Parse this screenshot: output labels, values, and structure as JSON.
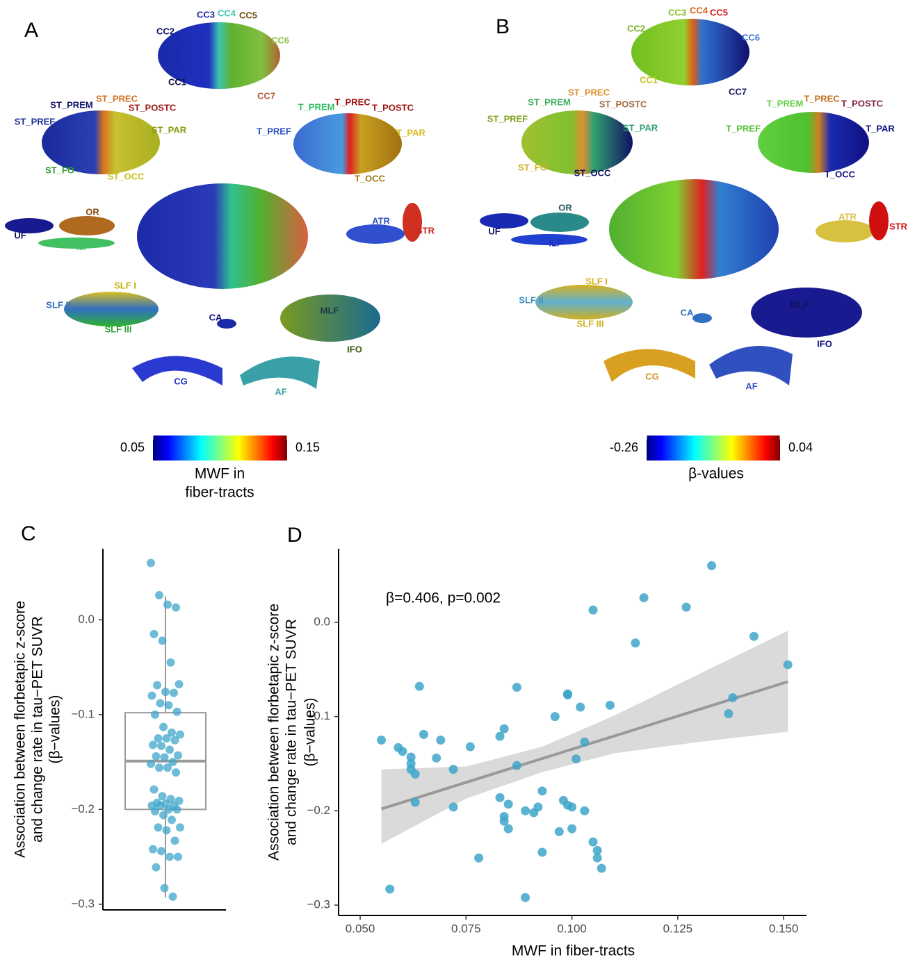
{
  "tract_maps": [
    {
      "letter": "A",
      "labels": [
        {
          "text": "CC3",
          "color": "#1f1fa0"
        },
        {
          "text": "CC4",
          "color": "#3cc7b0"
        },
        {
          "text": "CC5",
          "color": "#6e4e10"
        },
        {
          "text": "CC2",
          "color": "#10106a"
        },
        {
          "text": "CC6",
          "color": "#8cc040"
        },
        {
          "text": "CC1",
          "color": "#101040"
        },
        {
          "text": "CC7",
          "color": "#b05a30"
        },
        {
          "text": "ST_PREM",
          "color": "#10106a"
        },
        {
          "text": "ST_PREC",
          "color": "#d07020"
        },
        {
          "text": "ST_POSTC",
          "color": "#a01818"
        },
        {
          "text": "ST_PREF",
          "color": "#1a2a9a"
        },
        {
          "text": "ST_PAR",
          "color": "#8a9a10"
        },
        {
          "text": "ST_FO",
          "color": "#30a030"
        },
        {
          "text": "ST_OCC",
          "color": "#c8c020"
        },
        {
          "text": "T_PREM",
          "color": "#30c060"
        },
        {
          "text": "T_PREC",
          "color": "#a01010"
        },
        {
          "text": "T_POSTC",
          "color": "#a01010"
        },
        {
          "text": "T_PREF",
          "color": "#3050c0"
        },
        {
          "text": "T_PAR",
          "color": "#d8c020"
        },
        {
          "text": "T_OCC",
          "color": "#a07810"
        },
        {
          "text": "OR",
          "color": "#8a4a10"
        },
        {
          "text": "UF",
          "color": "#101060"
        },
        {
          "text": "ILF",
          "color": "#40c060"
        },
        {
          "text": "ATR",
          "color": "#3050c0"
        },
        {
          "text": "STR",
          "color": "#d02020"
        },
        {
          "text": "SLF I",
          "color": "#c8b010"
        },
        {
          "text": "SLF II",
          "color": "#3070c0"
        },
        {
          "text": "SLF III",
          "color": "#30a030"
        },
        {
          "text": "CA",
          "color": "#101080"
        },
        {
          "text": "MLF",
          "color": "#1a3a4a"
        },
        {
          "text": "IFO",
          "color": "#3a5a10"
        },
        {
          "text": "CG",
          "color": "#2030c0"
        },
        {
          "text": "AF",
          "color": "#30a0a8"
        }
      ],
      "colorbar": {
        "ticks": [
          0.05,
          0.15
        ],
        "label": [
          "MWF in",
          "fiber-tracts"
        ]
      }
    },
    {
      "letter": "B",
      "labels": [
        {
          "text": "CC3",
          "color": "#80c020"
        },
        {
          "text": "CC4",
          "color": "#e06010"
        },
        {
          "text": "CC5",
          "color": "#d01010"
        },
        {
          "text": "CC2",
          "color": "#70b020"
        },
        {
          "text": "CC6",
          "color": "#3070d0"
        },
        {
          "text": "CC1",
          "color": "#c8c020"
        },
        {
          "text": "CC7",
          "color": "#101060"
        },
        {
          "text": "ST_PREC",
          "color": "#e09030"
        },
        {
          "text": "ST_PREM",
          "color": "#40b060"
        },
        {
          "text": "ST_POSTC",
          "color": "#a07040"
        },
        {
          "text": "ST_PREF",
          "color": "#80a020"
        },
        {
          "text": "ST_PAR",
          "color": "#30a070"
        },
        {
          "text": "ST_FO",
          "color": "#d0b020"
        },
        {
          "text": "ST_OCC",
          "color": "#101060"
        },
        {
          "text": "T_PREM",
          "color": "#60d040"
        },
        {
          "text": "T_PREC",
          "color": "#c07020"
        },
        {
          "text": "T_POSTC",
          "color": "#802040"
        },
        {
          "text": "T_PREF",
          "color": "#50c030"
        },
        {
          "text": "T_PAR",
          "color": "#101080"
        },
        {
          "text": "T_OCC",
          "color": "#101080"
        },
        {
          "text": "OR",
          "color": "#2a5a5a"
        },
        {
          "text": "UF",
          "color": "#101060"
        },
        {
          "text": "ILF",
          "color": "#2030c0"
        },
        {
          "text": "ATR",
          "color": "#d8c040"
        },
        {
          "text": "STR",
          "color": "#d01010"
        },
        {
          "text": "SLF I",
          "color": "#d8b020"
        },
        {
          "text": "SLF II",
          "color": "#4090c0"
        },
        {
          "text": "SLF III",
          "color": "#d0b020"
        },
        {
          "text": "CA",
          "color": "#3070c0"
        },
        {
          "text": "MLF",
          "color": "#101060"
        },
        {
          "text": "IFO",
          "color": "#101080"
        },
        {
          "text": "CG",
          "color": "#d09020"
        },
        {
          "text": "AF",
          "color": "#3050c0"
        }
      ],
      "colorbar": {
        "ticks": [
          -0.26,
          0.04
        ],
        "label": [
          "β-values"
        ]
      }
    }
  ],
  "chart_data": [
    {
      "type": "box",
      "letter": "C",
      "ylabel": [
        "Association between florbetapic z-score",
        "and change rate in tau−PET SUVR",
        "(β−values)"
      ],
      "ylim": [
        -0.306,
        0.075
      ],
      "yticks": [
        {
          "value": -0.3,
          "label": "−0.3"
        },
        {
          "value": -0.2,
          "label": "−0.2"
        },
        {
          "value": -0.1,
          "label": "−0.1"
        },
        {
          "value": 0,
          "label": "0.0"
        }
      ],
      "box": {
        "whisker_low": -0.293,
        "q1": -0.2,
        "median": -0.149,
        "q3": -0.098,
        "whisker_high": 0.025
      },
      "box_color": "#9a9a9a",
      "color": "#3ea6c9",
      "values": [
        0.06,
        0.026,
        0.016,
        0.013,
        -0.015,
        -0.022,
        -0.045,
        -0.068,
        -0.069,
        -0.076,
        -0.077,
        -0.08,
        -0.088,
        -0.09,
        -0.097,
        -0.1,
        -0.113,
        -0.119,
        -0.121,
        -0.125,
        -0.125,
        -0.127,
        -0.132,
        -0.133,
        -0.137,
        -0.143,
        -0.144,
        -0.145,
        -0.15,
        -0.152,
        -0.156,
        -0.156,
        -0.161,
        -0.179,
        -0.186,
        -0.189,
        -0.191,
        -0.193,
        -0.194,
        -0.196,
        -0.196,
        -0.196,
        -0.2,
        -0.2,
        -0.202,
        -0.206,
        -0.211,
        -0.219,
        -0.219,
        -0.222,
        -0.233,
        -0.242,
        -0.244,
        -0.25,
        -0.25,
        -0.261,
        -0.283,
        -0.292
      ]
    },
    {
      "type": "scatter",
      "letter": "D",
      "annotation": "β=0.406, p=0.002",
      "xlabel": "MWF in fiber-tracts",
      "ylabel": [
        "Association between florbetapic z-score",
        "and change rate in tau−PET SUVR",
        "(β−values)"
      ],
      "xlim": [
        0.0449,
        0.1554
      ],
      "ylim": [
        -0.311,
        0.078
      ],
      "xticks": [
        {
          "value": 0.05,
          "label": "0.050"
        },
        0.075,
        {
          "value": 0.1,
          "label": "0.100"
        },
        0.125,
        {
          "value": 0.15,
          "label": "0.150"
        }
      ],
      "yticks": [
        {
          "value": -0.3,
          "label": "−0.3"
        },
        {
          "value": -0.2,
          "label": "−0.2"
        },
        {
          "value": -0.1,
          "label": "−0.1"
        },
        {
          "value": 0,
          "label": "0.0"
        }
      ],
      "color": "#3ea6c9",
      "fit_color": "#999999",
      "band_color": "#d3d3d3",
      "x": [
        0.133,
        0.117,
        0.127,
        0.105,
        0.143,
        0.115,
        0.151,
        0.064,
        0.087,
        0.099,
        0.099,
        0.138,
        0.109,
        0.102,
        0.137,
        0.096,
        0.084,
        0.065,
        0.083,
        0.055,
        0.069,
        0.103,
        0.076,
        0.059,
        0.06,
        0.062,
        0.068,
        0.101,
        0.062,
        0.087,
        0.072,
        0.062,
        0.063,
        0.093,
        0.083,
        0.098,
        0.063,
        0.085,
        0.099,
        0.1,
        0.092,
        0.072,
        0.103,
        0.089,
        0.091,
        0.084,
        0.084,
        0.085,
        0.1,
        0.097,
        0.105,
        0.106,
        0.093,
        0.106,
        0.078,
        0.107,
        0.057,
        0.089
      ],
      "values": [
        0.06,
        0.026,
        0.016,
        0.013,
        -0.015,
        -0.022,
        -0.045,
        -0.068,
        -0.069,
        -0.076,
        -0.077,
        -0.08,
        -0.088,
        -0.09,
        -0.097,
        -0.1,
        -0.113,
        -0.119,
        -0.121,
        -0.125,
        -0.125,
        -0.127,
        -0.132,
        -0.133,
        -0.137,
        -0.143,
        -0.144,
        -0.145,
        -0.15,
        -0.152,
        -0.156,
        -0.156,
        -0.161,
        -0.179,
        -0.186,
        -0.189,
        -0.191,
        -0.193,
        -0.194,
        -0.196,
        -0.196,
        -0.196,
        -0.2,
        -0.2,
        -0.202,
        -0.206,
        -0.211,
        -0.219,
        -0.219,
        -0.222,
        -0.233,
        -0.242,
        -0.244,
        -0.25,
        -0.25,
        -0.261,
        -0.283,
        -0.292
      ],
      "fit": {
        "x": [
          0.055,
          0.151
        ],
        "y": [
          -0.198,
          -0.063
        ]
      },
      "band": {
        "x": [
          0.055,
          0.075,
          0.093,
          0.11,
          0.13,
          0.151
        ],
        "upper": [
          -0.156,
          -0.153,
          -0.132,
          -0.099,
          -0.055,
          -0.009
        ],
        "lower": [
          -0.235,
          -0.187,
          -0.159,
          -0.139,
          -0.127,
          -0.116
        ]
      }
    }
  ]
}
